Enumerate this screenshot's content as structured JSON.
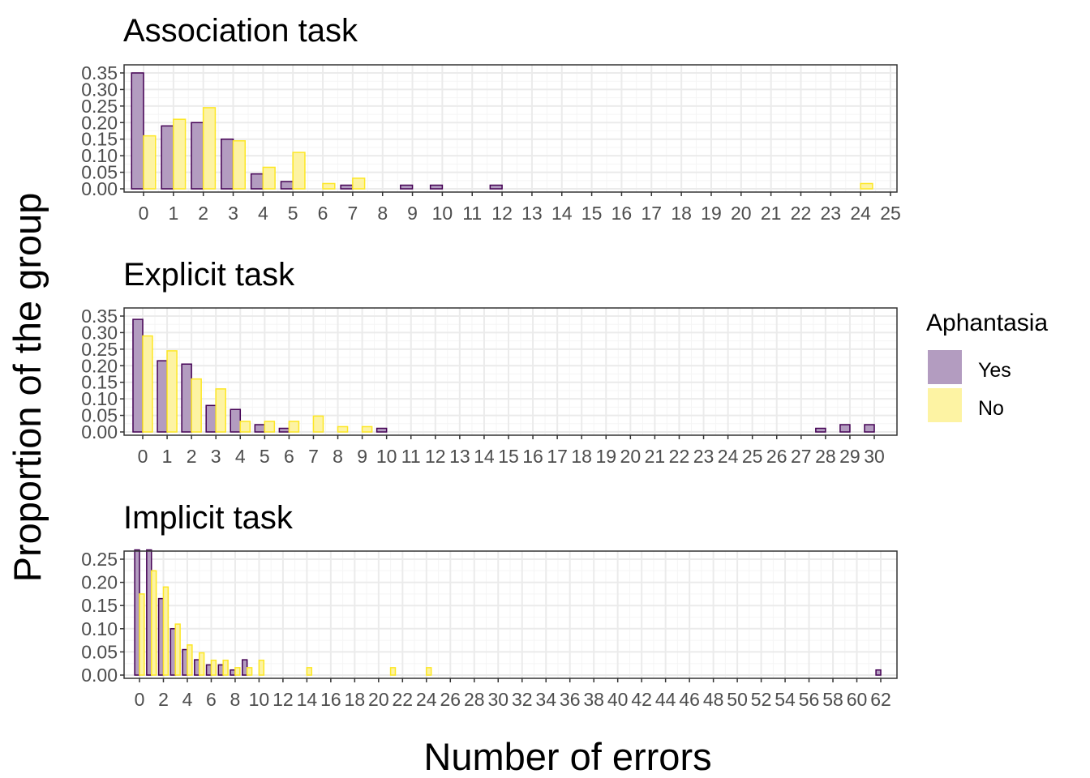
{
  "ylabel": "Proportion of the group",
  "xlabel": "Number of errors",
  "legend": {
    "title": "Aphantasia",
    "placement": "right",
    "items": [
      {
        "label": "Yes",
        "fill": "#b39cc0",
        "stroke": "#440154"
      },
      {
        "label": "No",
        "fill": "#fdf3a3",
        "stroke": "#fde725"
      }
    ]
  },
  "colors": {
    "yes_fill": "#b39cc0",
    "yes_stroke": "#440154",
    "no_fill": "#fdf3a3",
    "no_stroke": "#fde725",
    "grid_major": "#ebebeb",
    "grid_minor": "#f5f5f5",
    "panel_border": "#333333"
  },
  "chart_data": [
    {
      "type": "bar",
      "title": "Association task",
      "xlim": [
        0,
        25
      ],
      "x_tick_step": 1,
      "ylim": [
        0,
        0.35
      ],
      "y_ticks": [
        "0.00",
        "0.05",
        "0.10",
        "0.15",
        "0.20",
        "0.25",
        "0.30",
        "0.35"
      ],
      "grid": true,
      "series": [
        {
          "name": "Yes",
          "x": [
            0,
            1,
            2,
            3,
            4,
            5,
            7,
            9,
            10,
            12
          ],
          "values": [
            0.35,
            0.19,
            0.2,
            0.15,
            0.045,
            0.022,
            0.011,
            0.011,
            0.011,
            0.011
          ]
        },
        {
          "name": "No",
          "x": [
            0,
            1,
            2,
            3,
            4,
            5,
            6,
            7,
            24
          ],
          "values": [
            0.16,
            0.21,
            0.245,
            0.145,
            0.065,
            0.11,
            0.016,
            0.032,
            0.016
          ]
        }
      ]
    },
    {
      "type": "bar",
      "title": "Explicit task",
      "xlim": [
        0,
        30
      ],
      "x_tick_step": 1,
      "ylim": [
        0,
        0.35
      ],
      "y_ticks": [
        "0.00",
        "0.05",
        "0.10",
        "0.15",
        "0.20",
        "0.25",
        "0.30",
        "0.35"
      ],
      "grid": true,
      "series": [
        {
          "name": "Yes",
          "x": [
            0,
            1,
            2,
            3,
            4,
            5,
            6,
            10,
            28,
            29,
            30
          ],
          "values": [
            0.34,
            0.215,
            0.205,
            0.08,
            0.068,
            0.022,
            0.011,
            0.011,
            0.011,
            0.022,
            0.022
          ]
        },
        {
          "name": "No",
          "x": [
            0,
            1,
            2,
            3,
            4,
            5,
            6,
            7,
            8,
            9
          ],
          "values": [
            0.29,
            0.245,
            0.16,
            0.13,
            0.032,
            0.032,
            0.032,
            0.048,
            0.016,
            0.016
          ]
        }
      ]
    },
    {
      "type": "bar",
      "title": "Implicit task",
      "xlim": [
        0,
        62
      ],
      "x_tick_step": 2,
      "ylim": [
        0,
        0.25
      ],
      "y_ticks": [
        "0.00",
        "0.05",
        "0.10",
        "0.15",
        "0.20",
        "0.25"
      ],
      "grid": true,
      "series": [
        {
          "name": "Yes",
          "x": [
            0,
            1,
            2,
            3,
            4,
            5,
            6,
            7,
            8,
            9,
            62
          ],
          "values": [
            0.27,
            0.27,
            0.165,
            0.1,
            0.055,
            0.033,
            0.022,
            0.022,
            0.011,
            0.033,
            0.011
          ]
        },
        {
          "name": "No",
          "x": [
            0,
            1,
            2,
            3,
            4,
            5,
            6,
            7,
            8,
            9,
            10,
            14,
            21,
            24
          ],
          "values": [
            0.175,
            0.225,
            0.19,
            0.11,
            0.065,
            0.048,
            0.032,
            0.032,
            0.016,
            0.016,
            0.032,
            0.016,
            0.016,
            0.016
          ]
        }
      ]
    }
  ]
}
